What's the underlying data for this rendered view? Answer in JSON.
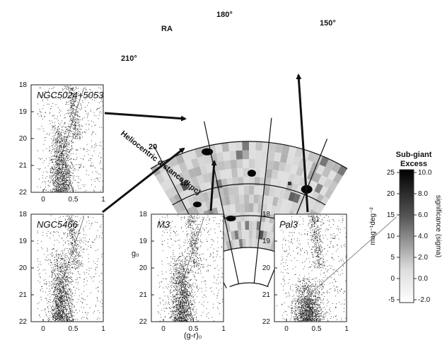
{
  "sky_map": {
    "ra_label": "RA",
    "ra_ticks": [
      "210°",
      "180°",
      "150°"
    ],
    "distance_label": "Heliocentric distance (kpc)",
    "distance_ticks": [
      "20",
      "10"
    ]
  },
  "colorbar": {
    "title_line1": "Sub-giant",
    "title_line2": "Excess",
    "left_label": "mag⁻¹deg⁻²",
    "right_label": "significance (sigma)",
    "left_ticks": [
      "25",
      "20",
      "15",
      "10",
      "5",
      "0",
      "-5"
    ],
    "right_ticks": [
      "10.0",
      "8.0",
      "6.0",
      "4.0",
      "2.0",
      "0.0",
      "-2.0"
    ],
    "dark_color": "#000000",
    "light_color": "#ffffff"
  },
  "cmd_axes": {
    "y_ticks": [
      "18",
      "19",
      "20",
      "21",
      "22"
    ],
    "x_ticks": [
      "0",
      "0.5",
      "1"
    ],
    "y_label": "g₀",
    "x_label": "(g-r)₀"
  },
  "panels": [
    {
      "id": "ngc5024",
      "name": "NGC5024+5053"
    },
    {
      "id": "ngc5466",
      "name": "NGC5466"
    },
    {
      "id": "m3",
      "name": "M3"
    },
    {
      "id": "pal3",
      "name": "Pal3"
    }
  ]
}
